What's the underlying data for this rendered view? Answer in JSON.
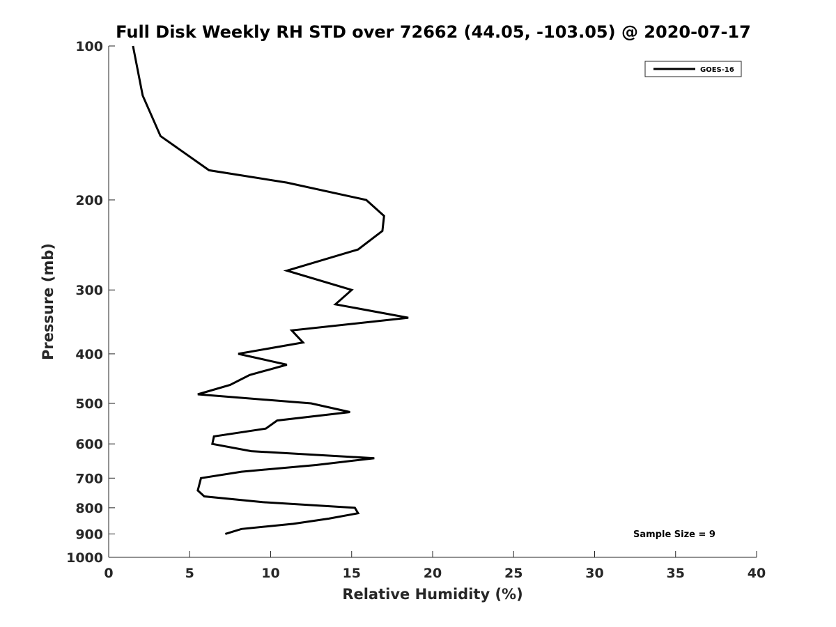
{
  "chart_data": {
    "type": "line",
    "title": "Full Disk Weekly RH STD over 72662 (44.05, -103.05) @ 2020-07-17",
    "xlabel": "Relative Humidity (%)",
    "ylabel": "Pressure (mb)",
    "xlim": [
      0,
      40
    ],
    "ylim": [
      100,
      1000
    ],
    "y_scale": "log",
    "y_inverted": true,
    "x_ticks": [
      "0",
      "5",
      "10",
      "15",
      "20",
      "25",
      "30",
      "35",
      "40"
    ],
    "y_ticks": [
      "100",
      "200",
      "300",
      "400",
      "500",
      "600",
      "700",
      "800",
      "900",
      "1000"
    ],
    "grid": false,
    "legend_position": "top-right",
    "series": [
      {
        "name": "GOES-16",
        "color": "#000000",
        "points": [
          [
            1.5,
            100
          ],
          [
            2.1,
            125
          ],
          [
            3.2,
            150
          ],
          [
            6.2,
            175
          ],
          [
            11.0,
            185
          ],
          [
            15.9,
            200
          ],
          [
            17.0,
            215
          ],
          [
            16.9,
            230
          ],
          [
            15.4,
            250
          ],
          [
            11.0,
            275
          ],
          [
            15.0,
            300
          ],
          [
            14.0,
            320
          ],
          [
            18.5,
            340
          ],
          [
            11.3,
            360
          ],
          [
            12.0,
            380
          ],
          [
            8.0,
            400
          ],
          [
            11.0,
            420
          ],
          [
            8.7,
            440
          ],
          [
            7.5,
            460
          ],
          [
            5.5,
            480
          ],
          [
            12.5,
            500
          ],
          [
            14.9,
            520
          ],
          [
            10.4,
            540
          ],
          [
            9.7,
            560
          ],
          [
            6.5,
            580
          ],
          [
            6.4,
            600
          ],
          [
            8.8,
            620
          ],
          [
            16.4,
            640
          ],
          [
            12.8,
            660
          ],
          [
            8.2,
            680
          ],
          [
            5.7,
            700
          ],
          [
            5.5,
            740
          ],
          [
            5.9,
            760
          ],
          [
            9.5,
            780
          ],
          [
            15.2,
            800
          ],
          [
            15.4,
            820
          ],
          [
            13.6,
            840
          ],
          [
            11.4,
            860
          ],
          [
            8.2,
            880
          ],
          [
            7.2,
            900
          ]
        ]
      }
    ],
    "annotations": [
      "Sample Size = 9"
    ]
  }
}
